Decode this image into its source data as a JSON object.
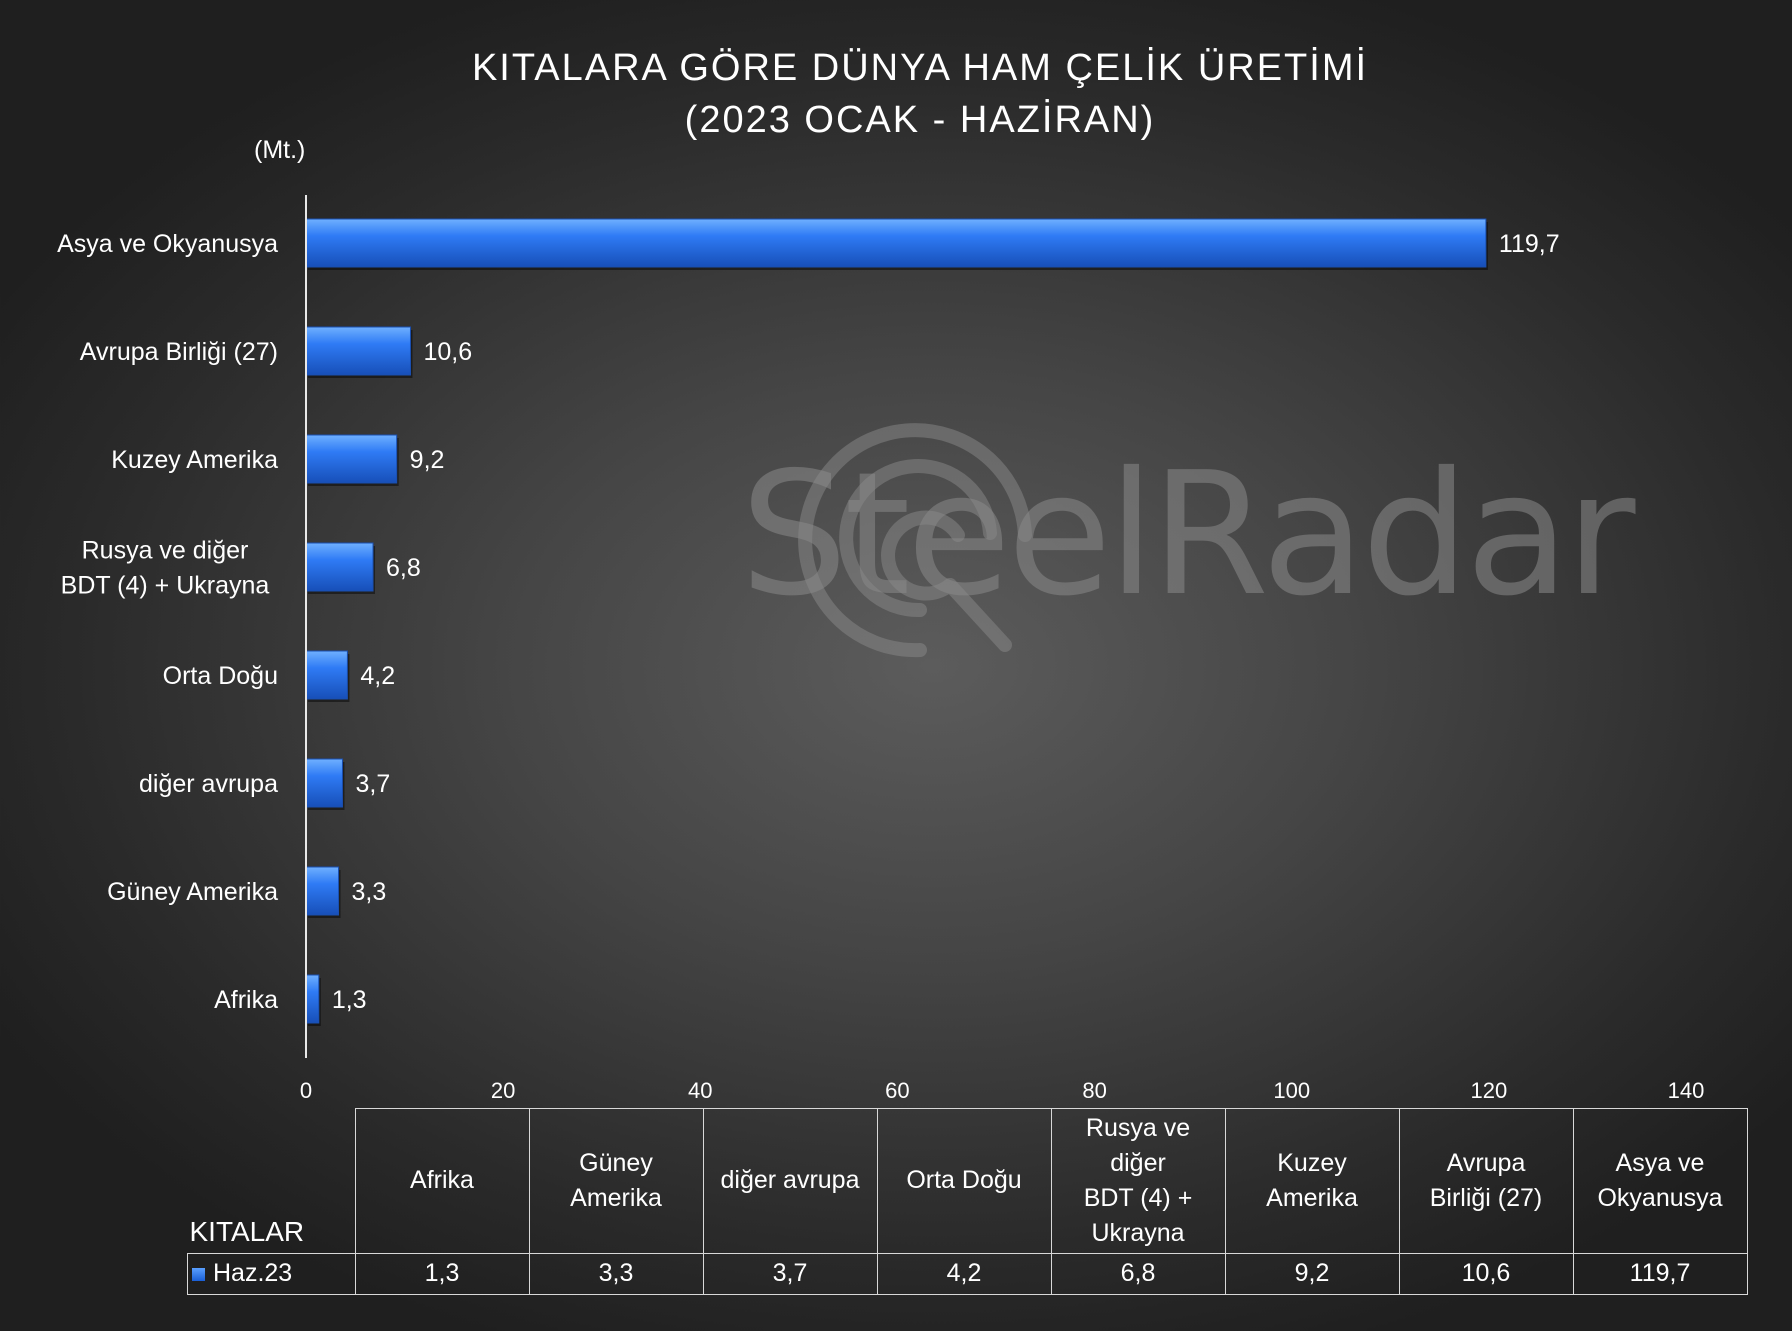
{
  "title_line1": "KITALARA GÖRE DÜNYA HAM ÇELİK ÜRETİMİ",
  "title_line2": "(2023 OCAK - HAZİRAN)",
  "unit_label": "(Mt.)",
  "watermark": "SteelRadar",
  "chart_data": {
    "type": "bar",
    "orientation": "horizontal",
    "title": "KITALARA GÖRE DÜNYA HAM ÇELİK ÜRETİMİ (2023 OCAK - HAZİRAN)",
    "ylabel": "(Mt.)",
    "categories": [
      "Asya ve Okyanusya",
      "Avrupa Birliği (27)",
      "Kuzey Amerika",
      "Rusya ve diğer BDT (4) + Ukrayna",
      "Orta Doğu",
      "diğer avrupa",
      "Güney Amerika",
      "Afrika"
    ],
    "category_lines": [
      [
        "Asya ve Okyanusya"
      ],
      [
        "Avrupa Birliği (27)"
      ],
      [
        "Kuzey Amerika"
      ],
      [
        "Rusya ve diğer",
        "BDT (4) + Ukrayna"
      ],
      [
        "Orta Doğu"
      ],
      [
        "diğer avrupa"
      ],
      [
        "Güney Amerika"
      ],
      [
        "Afrika"
      ]
    ],
    "series": [
      {
        "name": "Haz.23",
        "values": [
          119.7,
          10.6,
          9.2,
          6.8,
          4.2,
          3.7,
          3.3,
          1.3
        ],
        "labels": [
          "119,7",
          "10,6",
          "9,2",
          "6,8",
          "4,2",
          "3,7",
          "3,3",
          "1,3"
        ]
      }
    ],
    "xlim": [
      0,
      140
    ],
    "xticks": [
      "0",
      "20",
      "40",
      "60",
      "80",
      "100",
      "120",
      "140"
    ],
    "grid": false,
    "bar_color": "#2f7bf5"
  },
  "table": {
    "corner_label": "KITALAR",
    "series_label": "Haz.23",
    "columns": [
      [
        "Afrika"
      ],
      [
        "Güney",
        "Amerika"
      ],
      [
        "diğer avrupa"
      ],
      [
        "Orta Doğu"
      ],
      [
        "Rusya ve",
        "diğer",
        "BDT (4) +",
        "Ukrayna"
      ],
      [
        "Kuzey",
        "Amerika"
      ],
      [
        "Avrupa",
        "Birliği (27)"
      ],
      [
        "Asya ve",
        "Okyanusya"
      ]
    ],
    "values": [
      "1,3",
      "3,3",
      "3,7",
      "4,2",
      "6,8",
      "9,2",
      "10,6",
      "119,7"
    ]
  }
}
